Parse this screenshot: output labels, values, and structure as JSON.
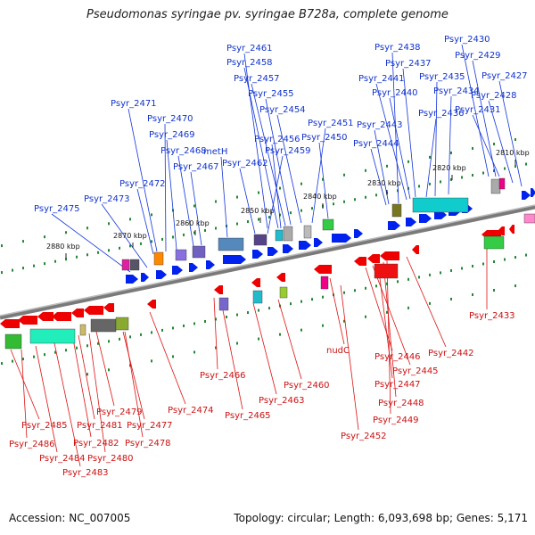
{
  "title": "Pseudomonas syringae pv. syringae B728a, complete genome",
  "footer": {
    "accession": "Accession: NC_007005",
    "topology": "Topology: circular; Length: 6,093,698 bp; Genes: 5,171"
  },
  "colors": {
    "forward": "#0022ee",
    "reverse": "#ee0000",
    "backbone": "#888888",
    "tick_dots": "#228833"
  },
  "ticks": [
    "2880 kbp",
    "2870 kbp",
    "2860 kbp",
    "2850 kbp",
    "2840 kbp",
    "2830 kbp",
    "2820 kbp",
    "2810 kbp"
  ],
  "forward_labels": [
    "Psyr_2475",
    "Psyr_2473",
    "Psyr_2472",
    "Psyr_2471",
    "Psyr_2470",
    "Psyr_2469",
    "Psyr_2468",
    "Psyr_2467",
    "metH",
    "Psyr_2462",
    "Psyr_2461",
    "Psyr_2458",
    "Psyr_2457",
    "Psyr_2455",
    "Psyr_2454",
    "Psyr_2456",
    "Psyr_2459",
    "Psyr_2451",
    "Psyr_2450",
    "Psyr_2438",
    "Psyr_2437",
    "Psyr_2441",
    "Psyr_2440",
    "Psyr_2443",
    "Psyr_2444",
    "Psyr_2435",
    "Psyr_2434",
    "Psyr_2436",
    "Psyr_2430",
    "Psyr_2429",
    "Psyr_2427",
    "Psyr_2428",
    "Psyr_2431"
  ],
  "reverse_labels": [
    "Psyr_2485",
    "Psyr_2486",
    "Psyr_2484",
    "Psyr_2483",
    "Psyr_2482",
    "Psyr_2481",
    "Psyr_2480",
    "Psyr_2479",
    "Psyr_2478",
    "Psyr_2477",
    "Psyr_2474",
    "Psyr_2466",
    "Psyr_2465",
    "Psyr_2463",
    "Psyr_2460",
    "nudC",
    "Psyr_2452",
    "Psyr_2446",
    "Psyr_2445",
    "Psyr_2447",
    "Psyr_2448",
    "Psyr_2449",
    "Psyr_2442",
    "Psyr_2433"
  ]
}
